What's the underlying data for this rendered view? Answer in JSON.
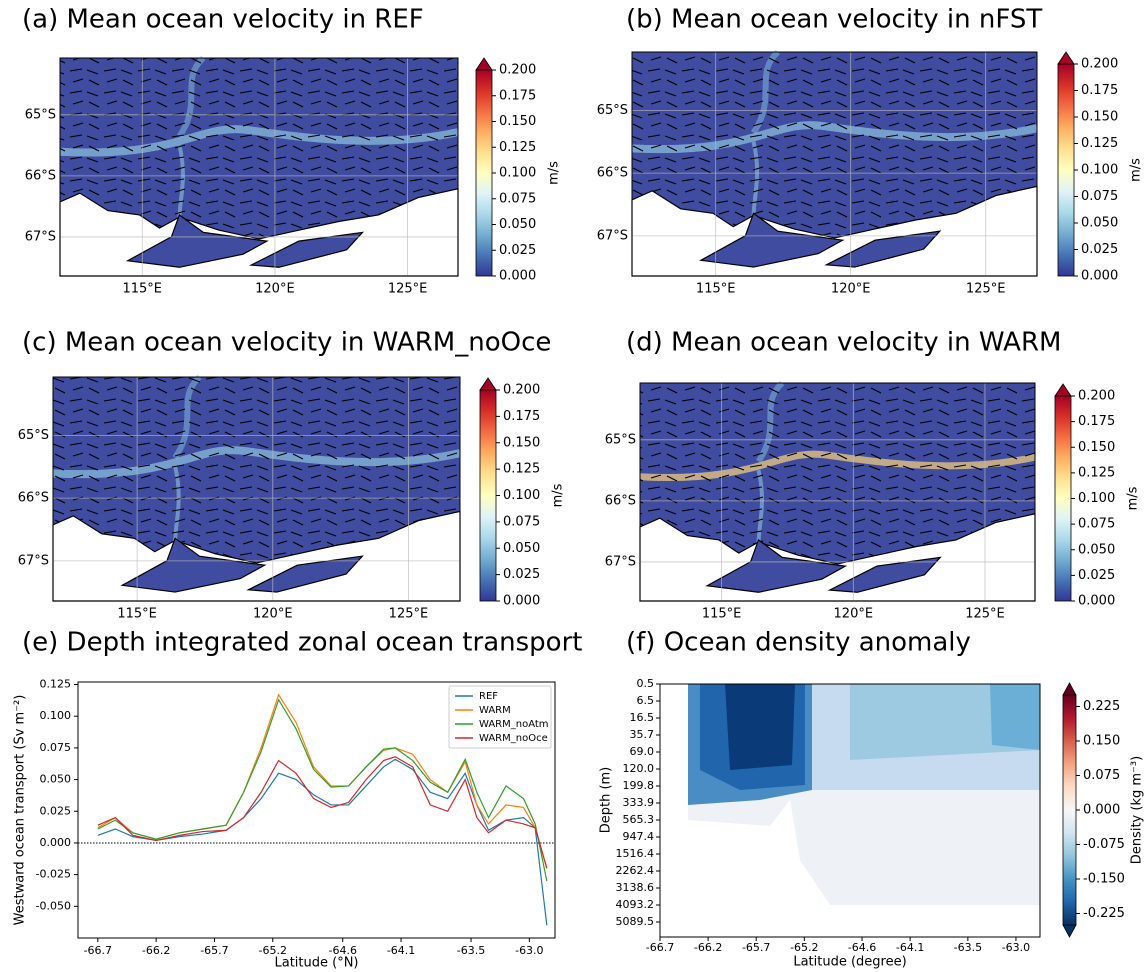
{
  "chart_data": [
    {
      "type": "map",
      "title": "(a) Mean ocean velocity in REF",
      "xlim": [
        111.9,
        126.9
      ],
      "ylim": [
        -67.64,
        -64.07
      ],
      "xticks": [
        {
          "value": 115,
          "label": "115°E"
        },
        {
          "value": 120,
          "label": "120°E"
        },
        {
          "value": 125,
          "label": "125°E"
        }
      ],
      "yticks": [
        {
          "value": -65,
          "label": "65°S"
        },
        {
          "value": -66,
          "label": "66°S"
        },
        {
          "value": -67,
          "label": "67°S"
        }
      ],
      "colorbar": {
        "label": "m/s",
        "lim": [
          0,
          0.2
        ],
        "ticks": [
          {
            "value": 0,
            "label": "0.000"
          },
          0.025,
          {
            "value": 0.05,
            "label": "0.050"
          },
          0.075,
          {
            "value": 0.1,
            "label": "0.100"
          },
          0.125,
          {
            "value": 0.15,
            "label": "0.150"
          },
          0.175,
          {
            "value": 0.2,
            "label": "0.200"
          }
        ],
        "colors": [
          "#313695",
          "#4575b4",
          "#74add1",
          "#abd9e9",
          "#e0f3f8",
          "#ffffbf",
          "#fee090",
          "#fdae61",
          "#f46d43",
          "#d73027",
          "#a50026"
        ]
      }
    },
    {
      "type": "map",
      "title": "(b) Mean ocean velocity in nFST",
      "xlim": [
        111.9,
        126.9
      ],
      "ylim": [
        -67.64,
        -64.07
      ],
      "xticks": [
        {
          "value": 115,
          "label": "115°E"
        },
        {
          "value": 120,
          "label": "120°E"
        },
        {
          "value": 125,
          "label": "125°E"
        }
      ],
      "yticks": [
        {
          "value": -65,
          "label": "65°S"
        },
        {
          "value": -66,
          "label": "66°S"
        },
        {
          "value": -67,
          "label": "67°S"
        }
      ],
      "colorbar": {
        "label": "m/s",
        "lim": [
          0,
          0.2
        ],
        "ticks": [
          {
            "value": 0,
            "label": "0.000"
          },
          0.025,
          {
            "value": 0.05,
            "label": "0.050"
          },
          0.075,
          {
            "value": 0.1,
            "label": "0.100"
          },
          0.125,
          {
            "value": 0.15,
            "label": "0.150"
          },
          0.175,
          {
            "value": 0.2,
            "label": "0.200"
          }
        ],
        "colors": [
          "#313695",
          "#4575b4",
          "#74add1",
          "#abd9e9",
          "#e0f3f8",
          "#ffffbf",
          "#fee090",
          "#fdae61",
          "#f46d43",
          "#d73027",
          "#a50026"
        ]
      }
    },
    {
      "type": "map",
      "title": "(c) Mean ocean velocity in WARM_noOce",
      "xlim": [
        111.9,
        126.9
      ],
      "ylim": [
        -67.64,
        -64.07
      ],
      "xticks": [
        {
          "value": 115,
          "label": "115°E"
        },
        {
          "value": 120,
          "label": "120°E"
        },
        {
          "value": 125,
          "label": "125°E"
        }
      ],
      "yticks": [
        {
          "value": -65,
          "label": "65°S"
        },
        {
          "value": -66,
          "label": "66°S"
        },
        {
          "value": -67,
          "label": "67°S"
        }
      ],
      "colorbar": {
        "label": "m/s",
        "lim": [
          0,
          0.2
        ],
        "ticks": [
          {
            "value": 0,
            "label": "0.000"
          },
          0.025,
          {
            "value": 0.05,
            "label": "0.050"
          },
          0.075,
          {
            "value": 0.1,
            "label": "0.100"
          },
          0.125,
          {
            "value": 0.15,
            "label": "0.150"
          },
          0.175,
          {
            "value": 0.2,
            "label": "0.200"
          }
        ],
        "colors": [
          "#313695",
          "#4575b4",
          "#74add1",
          "#abd9e9",
          "#e0f3f8",
          "#ffffbf",
          "#fee090",
          "#fdae61",
          "#f46d43",
          "#d73027",
          "#a50026"
        ]
      }
    },
    {
      "type": "map",
      "title": "(d) Mean ocean velocity in WARM",
      "xlim": [
        111.9,
        126.9
      ],
      "ylim": [
        -67.64,
        -64.07
      ],
      "xticks": [
        {
          "value": 115,
          "label": "115°E"
        },
        {
          "value": 120,
          "label": "120°E"
        },
        {
          "value": 125,
          "label": "125°E"
        }
      ],
      "yticks": [
        {
          "value": -65,
          "label": "65°S"
        },
        {
          "value": -66,
          "label": "66°S"
        },
        {
          "value": -67,
          "label": "67°S"
        }
      ],
      "colorbar": {
        "label": "m/s",
        "lim": [
          0,
          0.2
        ],
        "ticks": [
          {
            "value": 0,
            "label": "0.000"
          },
          0.025,
          {
            "value": 0.05,
            "label": "0.050"
          },
          0.075,
          {
            "value": 0.1,
            "label": "0.100"
          },
          0.125,
          {
            "value": 0.15,
            "label": "0.150"
          },
          0.175,
          {
            "value": 0.2,
            "label": "0.200"
          }
        ],
        "colors": [
          "#313695",
          "#4575b4",
          "#74add1",
          "#abd9e9",
          "#e0f3f8",
          "#ffffbf",
          "#fee090",
          "#fdae61",
          "#f46d43",
          "#d73027",
          "#a50026"
        ]
      }
    },
    {
      "type": "line",
      "title": "(e) Depth integrated zonal ocean transport",
      "xlabel": "Latitude (°N)",
      "ylabel": "Westward ocean transport (Sv m⁻²)",
      "x": [
        -66.7,
        -66.55,
        -66.4,
        -66.2,
        -66.0,
        -65.8,
        -65.6,
        -65.45,
        -65.3,
        -65.15,
        -65.0,
        -64.85,
        -64.7,
        -64.55,
        -64.4,
        -64.25,
        -64.15,
        -64.0,
        -63.85,
        -63.7,
        -63.55,
        -63.45,
        -63.35,
        -63.2,
        -63.05,
        -62.95,
        -62.85
      ],
      "series": [
        {
          "name": "REF",
          "color": "#1f77b4",
          "values": [
            0.006,
            0.011,
            0.005,
            0.002,
            0.005,
            0.007,
            0.01,
            0.02,
            0.035,
            0.055,
            0.05,
            0.038,
            0.03,
            0.03,
            0.045,
            0.06,
            0.066,
            0.058,
            0.04,
            0.035,
            0.055,
            0.03,
            0.01,
            0.018,
            0.02,
            0.012,
            -0.065
          ]
        },
        {
          "name": "WARM",
          "color": "#ff7f0e",
          "values": [
            0.012,
            0.02,
            0.008,
            0.003,
            0.008,
            0.011,
            0.014,
            0.04,
            0.075,
            0.117,
            0.095,
            0.06,
            0.045,
            0.045,
            0.06,
            0.073,
            0.075,
            0.07,
            0.05,
            0.04,
            0.064,
            0.03,
            0.015,
            0.03,
            0.028,
            0.012,
            -0.02
          ]
        },
        {
          "name": "WARM_noAtm",
          "color": "#2ca02c",
          "values": [
            0.011,
            0.018,
            0.008,
            0.003,
            0.008,
            0.011,
            0.014,
            0.04,
            0.072,
            0.113,
            0.09,
            0.058,
            0.044,
            0.045,
            0.06,
            0.074,
            0.075,
            0.065,
            0.048,
            0.04,
            0.066,
            0.04,
            0.02,
            0.045,
            0.035,
            0.015,
            -0.03
          ]
        },
        {
          "name": "WARM_noOce",
          "color": "#d62728",
          "values": [
            0.014,
            0.02,
            0.006,
            0.002,
            0.006,
            0.009,
            0.01,
            0.02,
            0.04,
            0.065,
            0.055,
            0.035,
            0.028,
            0.032,
            0.05,
            0.065,
            0.068,
            0.06,
            0.03,
            0.025,
            0.05,
            0.02,
            0.008,
            0.018,
            0.015,
            0.012,
            -0.02
          ]
        }
      ],
      "xlim": [
        -66.87,
        -62.78
      ],
      "ylim": [
        -0.075,
        0.127
      ],
      "xticks": [
        -66.7,
        -66.2,
        -65.7,
        -65.2,
        -64.6,
        -64.1,
        -63.5,
        {
          "value": -63,
          "label": "-63.0"
        }
      ],
      "yticks": [
        {
          "value": -0.05,
          "label": "-0.050"
        },
        -0.025,
        {
          "value": 0,
          "label": "0.000"
        },
        0.025,
        {
          "value": 0.05,
          "label": "0.050"
        },
        0.075,
        {
          "value": 0.1,
          "label": "0.100"
        },
        0.125
      ],
      "zero_line": true,
      "legend": "upper right"
    },
    {
      "type": "contour",
      "title": "(f) Ocean density anomaly",
      "xlabel": "Latitude (degree)",
      "ylabel": "Depth (m)",
      "xlim": [
        -66.7,
        -62.75
      ],
      "xticks": [
        -66.7,
        -66.2,
        -65.7,
        -65.2,
        -64.6,
        -64.1,
        -63.5,
        {
          "value": -63,
          "label": "-63.0"
        }
      ],
      "y_categories": [
        "0.5",
        "6.5",
        "16.5",
        "35.7",
        "69.0",
        "120.0",
        "199.8",
        "333.9",
        "565.3",
        "947.4",
        "1516.4",
        "2262.4",
        "3138.6",
        "4093.2",
        "5089.5"
      ],
      "colorbar": {
        "label": "Density (kg m⁻³)",
        "lim": [
          -0.25,
          0.25
        ],
        "ticks": [
          -0.225,
          {
            "value": -0.15,
            "label": "-0.150"
          },
          -0.075,
          {
            "value": 0,
            "label": "0.000"
          },
          0.075,
          {
            "value": 0.15,
            "label": "0.150"
          },
          0.225
        ],
        "colors": [
          "#053061",
          "#2166ac",
          "#4393c3",
          "#92c5de",
          "#d1e5f0",
          "#f7f7f7",
          "#fddbc7",
          "#f4a582",
          "#d6604d",
          "#b2182b",
          "#67001f"
        ]
      }
    }
  ]
}
